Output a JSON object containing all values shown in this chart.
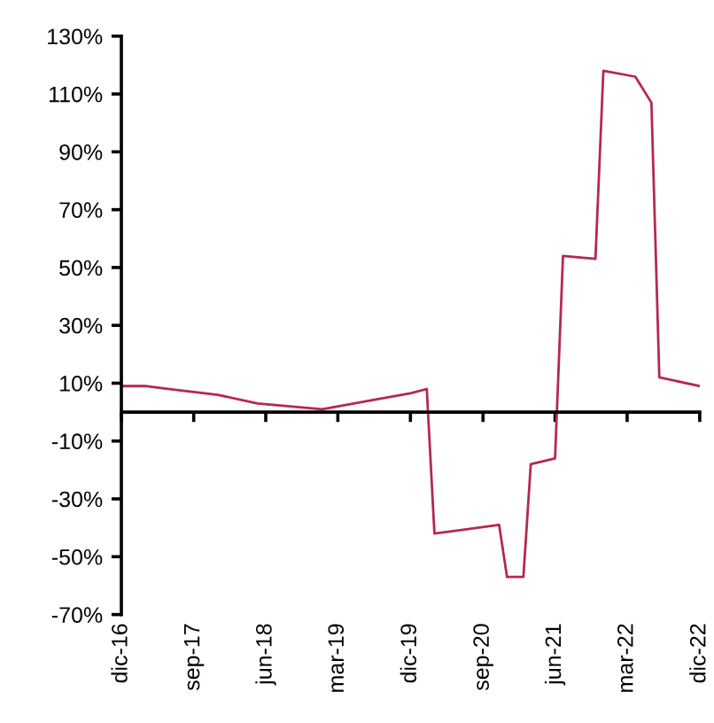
{
  "chart_data": {
    "type": "line",
    "x": [
      "2016-12",
      "2017-03",
      "2017-06",
      "2017-12",
      "2018-05",
      "2018-09",
      "2019-01",
      "2019-08",
      "2019-12",
      "2020-02",
      "2020-03",
      "2020-11",
      "2020-12",
      "2021-02",
      "2021-03",
      "2021-06",
      "2021-07",
      "2021-11",
      "2021-12",
      "2022-04",
      "2022-06",
      "2022-07",
      "2022-12"
    ],
    "series": [
      {
        "color": "#b5284f",
        "values": [
          9,
          9,
          8,
          6,
          3,
          2,
          1,
          4.5,
          6.5,
          8,
          -42,
          -39,
          -57,
          -57,
          -18,
          -16,
          54,
          53,
          118,
          116,
          107,
          12,
          9
        ]
      }
    ],
    "xlim": [
      "2016-12",
      "2022-12"
    ],
    "xticks": [
      {
        "value": "2016-12",
        "label": "dic-16"
      },
      {
        "value": "2017-09",
        "label": "sep-17"
      },
      {
        "value": "2018-06",
        "label": "jun-18"
      },
      {
        "value": "2019-03",
        "label": "mar-19"
      },
      {
        "value": "2019-12",
        "label": "dic-19"
      },
      {
        "value": "2020-09",
        "label": "sep-20"
      },
      {
        "value": "2021-06",
        "label": "jun-21"
      },
      {
        "value": "2022-03",
        "label": "mar-22"
      },
      {
        "value": "2022-12",
        "label": "dic-22"
      }
    ],
    "ylim": [
      -70,
      130
    ],
    "yticks": [
      {
        "value": -70,
        "label": "-70%"
      },
      {
        "value": -50,
        "label": "-50%"
      },
      {
        "value": -30,
        "label": "-30%"
      },
      {
        "value": -10,
        "label": "-10%"
      },
      {
        "value": 10,
        "label": "10%"
      },
      {
        "value": 30,
        "label": "30%"
      },
      {
        "value": 50,
        "label": "50%"
      },
      {
        "value": 70,
        "label": "70%"
      },
      {
        "value": 90,
        "label": "90%"
      },
      {
        "value": 110,
        "label": "110%"
      },
      {
        "value": 130,
        "label": "130%"
      }
    ],
    "marker": "none",
    "line_style": "solid"
  }
}
